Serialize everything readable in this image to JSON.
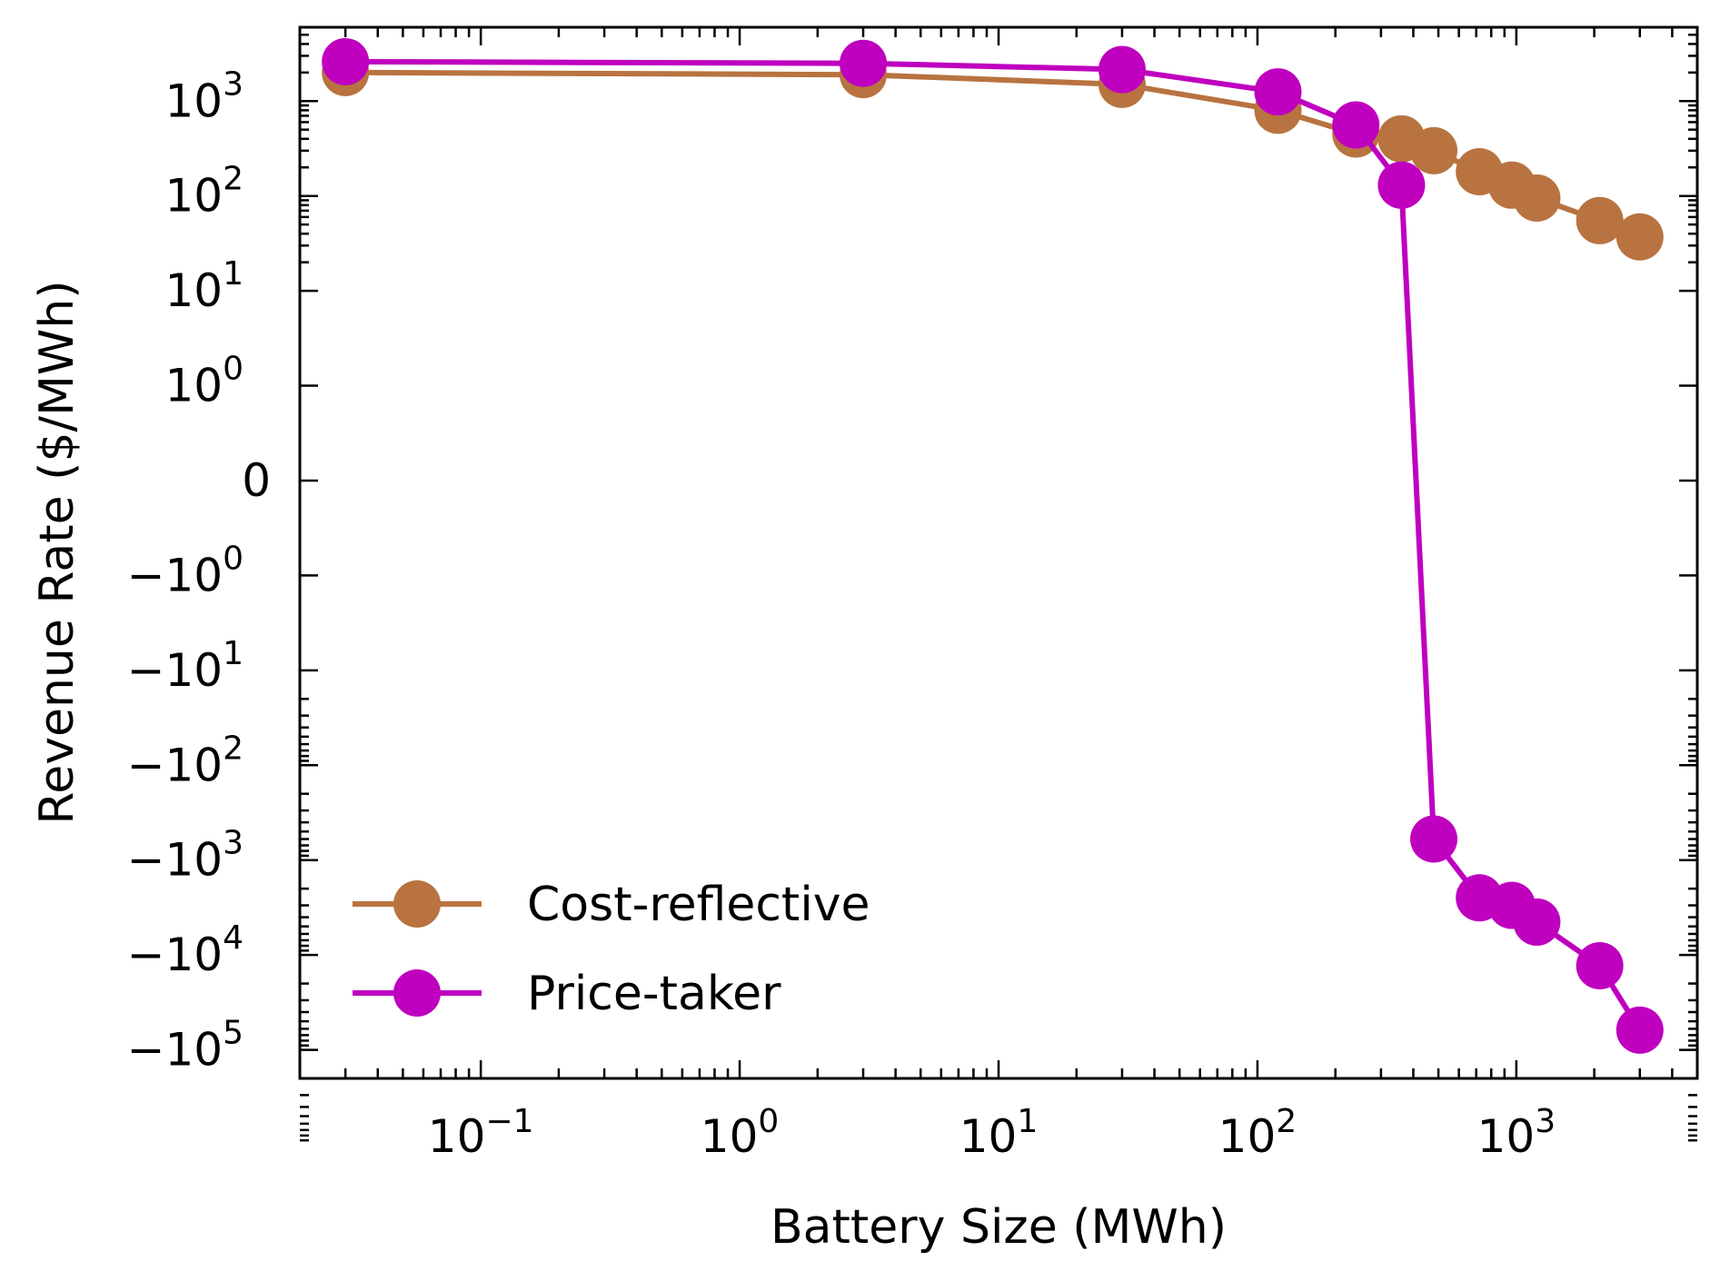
{
  "chart_data": {
    "type": "line",
    "title": "",
    "xlabel": "Battery Size (MWh)",
    "ylabel": "Revenue Rate ($/MWh)",
    "xscale": "log",
    "yscale": "symlog",
    "symlog_linthresh": 1,
    "xlim": [
      0.02,
      5000
    ],
    "ylim": [
      -200000,
      6000
    ],
    "grid": false,
    "legend_position": "lower-left",
    "x_ticks": [
      {
        "value": 0.1,
        "base": "10",
        "exp": "−1"
      },
      {
        "value": 1,
        "base": "10",
        "exp": "0"
      },
      {
        "value": 10,
        "base": "10",
        "exp": "1"
      },
      {
        "value": 100,
        "base": "10",
        "exp": "2"
      },
      {
        "value": 1000,
        "base": "10",
        "exp": "3"
      }
    ],
    "y_ticks": [
      {
        "value": 1000,
        "base": "10",
        "exp": "3"
      },
      {
        "value": 100,
        "base": "10",
        "exp": "2"
      },
      {
        "value": 10,
        "base": "10",
        "exp": "1"
      },
      {
        "value": 1,
        "base": "10",
        "exp": "0"
      },
      {
        "value": 0,
        "base": "0",
        "exp": ""
      },
      {
        "value": -1,
        "base": "−10",
        "exp": "0"
      },
      {
        "value": -10,
        "base": "−10",
        "exp": "1"
      },
      {
        "value": -100,
        "base": "−10",
        "exp": "2"
      },
      {
        "value": -1000,
        "base": "−10",
        "exp": "3"
      },
      {
        "value": -10000,
        "base": "−10",
        "exp": "4"
      },
      {
        "value": -100000,
        "base": "−10",
        "exp": "5"
      }
    ],
    "series": [
      {
        "name": "Cost-reflective",
        "color": "#b87340",
        "x": [
          0.03,
          3,
          30,
          120,
          240,
          360,
          480,
          720,
          960,
          1200,
          2100,
          3000
        ],
        "y": [
          2000,
          1900,
          1500,
          800,
          450,
          400,
          300,
          180,
          130,
          95,
          55,
          37
        ]
      },
      {
        "name": "Price-taker",
        "color": "#bf00bf",
        "x": [
          0.03,
          3,
          30,
          120,
          240,
          360,
          480,
          720,
          960,
          1200,
          2100,
          3000
        ],
        "y": [
          2600,
          2500,
          2150,
          1250,
          560,
          130,
          -600,
          -2500,
          -3000,
          -4500,
          -13000,
          -62000
        ]
      }
    ]
  }
}
